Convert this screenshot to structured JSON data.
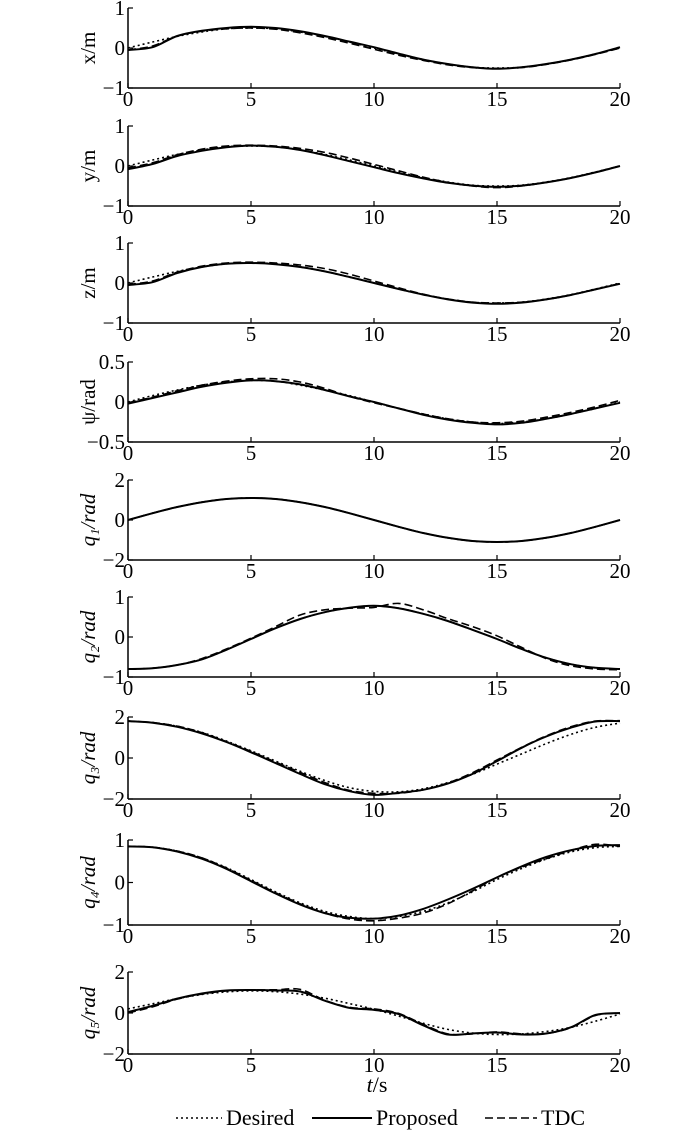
{
  "chart_data": [
    {
      "type": "line",
      "ylabel": "x/m",
      "xlim": [
        0,
        20
      ],
      "ylim": [
        -1,
        1
      ],
      "xticks": [
        "0",
        "5",
        "10",
        "15",
        "20"
      ],
      "yticks": [
        "1",
        "0",
        "−1"
      ],
      "x": [
        0,
        1,
        2,
        3,
        4,
        5,
        6,
        7,
        8,
        9,
        10,
        11,
        12,
        13,
        14,
        15,
        16,
        17,
        18,
        19,
        20
      ],
      "series": [
        {
          "name": "Desired",
          "values": [
            0.0,
            0.15,
            0.29,
            0.4,
            0.48,
            0.5,
            0.48,
            0.4,
            0.29,
            0.15,
            0.0,
            -0.15,
            -0.29,
            -0.4,
            -0.48,
            -0.5,
            -0.48,
            -0.4,
            -0.29,
            -0.15,
            0.0
          ]
        },
        {
          "name": "Proposed",
          "values": [
            -0.05,
            0.02,
            0.3,
            0.43,
            0.5,
            0.53,
            0.5,
            0.42,
            0.3,
            0.16,
            0.02,
            -0.14,
            -0.29,
            -0.4,
            -0.48,
            -0.52,
            -0.48,
            -0.4,
            -0.29,
            -0.15,
            0.02
          ]
        },
        {
          "name": "TDC",
          "values": [
            -0.05,
            0.05,
            0.3,
            0.42,
            0.48,
            0.5,
            0.47,
            0.38,
            0.26,
            0.12,
            -0.03,
            -0.18,
            -0.31,
            -0.42,
            -0.49,
            -0.51,
            -0.49,
            -0.41,
            -0.3,
            -0.16,
            0.0
          ]
        }
      ]
    },
    {
      "type": "line",
      "ylabel": "y/m",
      "xlim": [
        0,
        20
      ],
      "ylim": [
        -1,
        1
      ],
      "xticks": [
        "0",
        "5",
        "10",
        "15",
        "20"
      ],
      "yticks": [
        "1",
        "0",
        "−1"
      ],
      "x": [
        0,
        1,
        2,
        3,
        4,
        5,
        6,
        7,
        8,
        9,
        10,
        11,
        12,
        13,
        14,
        15,
        16,
        17,
        18,
        19,
        20
      ],
      "series": [
        {
          "name": "Desired",
          "values": [
            0.0,
            0.15,
            0.29,
            0.4,
            0.48,
            0.5,
            0.48,
            0.4,
            0.29,
            0.15,
            0.0,
            -0.15,
            -0.29,
            -0.4,
            -0.48,
            -0.5,
            -0.48,
            -0.4,
            -0.29,
            -0.15,
            0.0
          ]
        },
        {
          "name": "Proposed",
          "values": [
            -0.08,
            0.05,
            0.25,
            0.38,
            0.47,
            0.51,
            0.48,
            0.4,
            0.27,
            0.12,
            -0.03,
            -0.18,
            -0.31,
            -0.42,
            -0.49,
            -0.52,
            -0.49,
            -0.41,
            -0.3,
            -0.16,
            0.0
          ]
        },
        {
          "name": "TDC",
          "values": [
            -0.05,
            0.08,
            0.28,
            0.42,
            0.5,
            0.52,
            0.5,
            0.44,
            0.34,
            0.2,
            0.04,
            -0.12,
            -0.28,
            -0.41,
            -0.5,
            -0.54,
            -0.5,
            -0.41,
            -0.3,
            -0.16,
            0.0
          ]
        }
      ]
    },
    {
      "type": "line",
      "ylabel": "z/m",
      "xlim": [
        0,
        20
      ],
      "ylim": [
        -1,
        1
      ],
      "xticks": [
        "0",
        "5",
        "10",
        "15",
        "20"
      ],
      "yticks": [
        "1",
        "0",
        "−1"
      ],
      "x": [
        0,
        1,
        2,
        3,
        4,
        5,
        6,
        7,
        8,
        9,
        10,
        11,
        12,
        13,
        14,
        15,
        16,
        17,
        18,
        19,
        20
      ],
      "series": [
        {
          "name": "Desired",
          "values": [
            0.0,
            0.15,
            0.29,
            0.4,
            0.48,
            0.5,
            0.48,
            0.4,
            0.29,
            0.15,
            0.0,
            -0.15,
            -0.29,
            -0.4,
            -0.48,
            -0.5,
            -0.48,
            -0.4,
            -0.29,
            -0.15,
            0.0
          ]
        },
        {
          "name": "Proposed",
          "values": [
            -0.05,
            0.02,
            0.25,
            0.4,
            0.48,
            0.5,
            0.47,
            0.4,
            0.29,
            0.15,
            0.0,
            -0.15,
            -0.29,
            -0.41,
            -0.49,
            -0.52,
            -0.49,
            -0.41,
            -0.3,
            -0.16,
            -0.02
          ]
        },
        {
          "name": "TDC",
          "values": [
            -0.04,
            0.05,
            0.27,
            0.42,
            0.5,
            0.52,
            0.5,
            0.45,
            0.36,
            0.22,
            0.05,
            -0.12,
            -0.28,
            -0.4,
            -0.48,
            -0.5,
            -0.48,
            -0.41,
            -0.3,
            -0.16,
            -0.01
          ]
        }
      ]
    },
    {
      "type": "line",
      "ylabel": "ψ/rad",
      "xlim": [
        0,
        20
      ],
      "ylim": [
        -0.5,
        0.5
      ],
      "xticks": [
        "0",
        "5",
        "10",
        "15",
        "20"
      ],
      "yticks": [
        "0.5",
        "0",
        "−0.5"
      ],
      "x": [
        0,
        1,
        2,
        3,
        4,
        5,
        6,
        7,
        8,
        9,
        10,
        11,
        12,
        13,
        14,
        15,
        16,
        17,
        18,
        19,
        20
      ],
      "series": [
        {
          "name": "Desired",
          "values": [
            0.0,
            0.08,
            0.15,
            0.21,
            0.25,
            0.27,
            0.26,
            0.21,
            0.15,
            0.08,
            0.0,
            -0.08,
            -0.15,
            -0.21,
            -0.25,
            -0.27,
            -0.25,
            -0.21,
            -0.15,
            -0.08,
            0.0
          ]
        },
        {
          "name": "Proposed",
          "values": [
            -0.02,
            0.05,
            0.12,
            0.19,
            0.24,
            0.27,
            0.26,
            0.22,
            0.15,
            0.07,
            0.0,
            -0.08,
            -0.16,
            -0.22,
            -0.26,
            -0.28,
            -0.26,
            -0.21,
            -0.15,
            -0.08,
            -0.01
          ]
        },
        {
          "name": "TDC",
          "values": [
            -0.01,
            0.06,
            0.14,
            0.21,
            0.26,
            0.29,
            0.29,
            0.25,
            0.17,
            0.07,
            -0.01,
            -0.08,
            -0.15,
            -0.21,
            -0.25,
            -0.26,
            -0.24,
            -0.19,
            -0.13,
            -0.06,
            0.02
          ]
        }
      ]
    },
    {
      "type": "line",
      "ylabel": "q₁/rad",
      "xlim": [
        0,
        20
      ],
      "ylim": [
        -2,
        2
      ],
      "xticks": [
        "0",
        "5",
        "10",
        "15",
        "20"
      ],
      "yticks": [
        "2",
        "0",
        "−2"
      ],
      "x": [
        0,
        1,
        2,
        3,
        4,
        5,
        6,
        7,
        8,
        9,
        10,
        11,
        12,
        13,
        14,
        15,
        16,
        17,
        18,
        19,
        20
      ],
      "series": [
        {
          "name": "Desired",
          "values": [
            0.0,
            0.34,
            0.65,
            0.89,
            1.05,
            1.1,
            1.05,
            0.89,
            0.65,
            0.34,
            0.0,
            -0.34,
            -0.65,
            -0.89,
            -1.05,
            -1.1,
            -1.05,
            -0.89,
            -0.65,
            -0.34,
            0.0
          ]
        },
        {
          "name": "Proposed",
          "values": [
            0.0,
            0.34,
            0.65,
            0.89,
            1.05,
            1.1,
            1.05,
            0.89,
            0.65,
            0.34,
            0.0,
            -0.34,
            -0.65,
            -0.89,
            -1.05,
            -1.1,
            -1.05,
            -0.89,
            -0.65,
            -0.34,
            0.0
          ]
        },
        {
          "name": "TDC",
          "values": [
            0.0,
            0.34,
            0.65,
            0.89,
            1.05,
            1.1,
            1.05,
            0.89,
            0.65,
            0.34,
            0.0,
            -0.34,
            -0.65,
            -0.89,
            -1.05,
            -1.1,
            -1.05,
            -0.89,
            -0.65,
            -0.34,
            0.0
          ]
        }
      ]
    },
    {
      "type": "line",
      "ylabel": "q₂/rad",
      "xlim": [
        0,
        20
      ],
      "ylim": [
        -1,
        1
      ],
      "xticks": [
        "0",
        "5",
        "10",
        "15",
        "20"
      ],
      "yticks": [
        "1",
        "0",
        "−1"
      ],
      "x": [
        0,
        1,
        2,
        3,
        4,
        5,
        6,
        7,
        8,
        9,
        10,
        11,
        12,
        13,
        14,
        15,
        16,
        17,
        18,
        19,
        20
      ],
      "series": [
        {
          "name": "Desired",
          "values": [
            -0.8,
            -0.78,
            -0.7,
            -0.56,
            -0.32,
            -0.05,
            0.22,
            0.45,
            0.62,
            0.73,
            0.78,
            0.72,
            0.58,
            0.4,
            0.18,
            -0.05,
            -0.3,
            -0.52,
            -0.68,
            -0.77,
            -0.8
          ]
        },
        {
          "name": "Proposed",
          "values": [
            -0.8,
            -0.78,
            -0.7,
            -0.56,
            -0.32,
            -0.05,
            0.22,
            0.45,
            0.62,
            0.73,
            0.78,
            0.72,
            0.58,
            0.4,
            0.18,
            -0.05,
            -0.3,
            -0.52,
            -0.68,
            -0.77,
            -0.8
          ]
        },
        {
          "name": "TDC",
          "values": [
            -0.8,
            -0.78,
            -0.7,
            -0.54,
            -0.3,
            -0.03,
            0.26,
            0.55,
            0.68,
            0.72,
            0.74,
            0.84,
            0.68,
            0.46,
            0.26,
            0.03,
            -0.26,
            -0.54,
            -0.72,
            -0.8,
            -0.82
          ]
        }
      ]
    },
    {
      "type": "line",
      "ylabel": "q₃/rad",
      "xlim": [
        0,
        20
      ],
      "ylim": [
        -2,
        2
      ],
      "xticks": [
        "0",
        "5",
        "10",
        "15",
        "20"
      ],
      "yticks": [
        "2",
        "0",
        "−2"
      ],
      "x": [
        0,
        1,
        2,
        3,
        4,
        5,
        6,
        7,
        8,
        9,
        10,
        11,
        12,
        13,
        14,
        15,
        16,
        17,
        18,
        19,
        20
      ],
      "series": [
        {
          "name": "Desired",
          "values": [
            1.8,
            1.73,
            1.55,
            1.25,
            0.83,
            0.35,
            -0.15,
            -0.65,
            -1.1,
            -1.45,
            -1.63,
            -1.65,
            -1.5,
            -1.2,
            -0.8,
            -0.3,
            0.2,
            0.7,
            1.15,
            1.5,
            1.7
          ]
        },
        {
          "name": "Proposed",
          "values": [
            1.8,
            1.72,
            1.52,
            1.2,
            0.78,
            0.28,
            -0.25,
            -0.78,
            -1.28,
            -1.62,
            -1.8,
            -1.7,
            -1.55,
            -1.25,
            -0.78,
            -0.15,
            0.5,
            1.05,
            1.48,
            1.78,
            1.8
          ]
        },
        {
          "name": "TDC",
          "values": [
            1.8,
            1.73,
            1.55,
            1.24,
            0.8,
            0.32,
            -0.2,
            -0.7,
            -1.2,
            -1.58,
            -1.72,
            -1.72,
            -1.55,
            -1.22,
            -0.72,
            -0.1,
            0.52,
            1.08,
            1.52,
            1.8,
            1.82
          ]
        }
      ]
    },
    {
      "type": "line",
      "ylabel": "q₄/rad",
      "xlim": [
        0,
        20
      ],
      "ylim": [
        -1,
        1
      ],
      "xticks": [
        "0",
        "5",
        "10",
        "15",
        "20"
      ],
      "yticks": [
        "1",
        "0",
        "−1"
      ],
      "x": [
        0,
        1,
        2,
        3,
        4,
        5,
        6,
        7,
        8,
        9,
        10,
        11,
        12,
        13,
        14,
        15,
        16,
        17,
        18,
        19,
        20
      ],
      "series": [
        {
          "name": "Desired",
          "values": [
            0.85,
            0.83,
            0.74,
            0.58,
            0.35,
            0.07,
            -0.22,
            -0.48,
            -0.68,
            -0.8,
            -0.85,
            -0.8,
            -0.68,
            -0.48,
            -0.22,
            0.07,
            0.33,
            0.55,
            0.72,
            0.82,
            0.85
          ]
        },
        {
          "name": "Proposed",
          "values": [
            0.85,
            0.83,
            0.73,
            0.56,
            0.32,
            0.03,
            -0.26,
            -0.52,
            -0.72,
            -0.83,
            -0.85,
            -0.78,
            -0.62,
            -0.4,
            -0.15,
            0.12,
            0.38,
            0.6,
            0.76,
            0.86,
            0.88
          ]
        },
        {
          "name": "TDC",
          "values": [
            0.85,
            0.83,
            0.74,
            0.58,
            0.34,
            0.05,
            -0.24,
            -0.5,
            -0.72,
            -0.86,
            -0.9,
            -0.84,
            -0.72,
            -0.5,
            -0.2,
            0.12,
            0.36,
            0.56,
            0.75,
            0.9,
            0.85
          ]
        }
      ]
    },
    {
      "type": "line",
      "ylabel": "q₅/rad",
      "xlim": [
        0,
        20
      ],
      "ylim": [
        -2,
        2
      ],
      "xticks": [
        "0",
        "5",
        "10",
        "15",
        "20"
      ],
      "yticks": [
        "2",
        "0",
        "−2"
      ],
      "xlabel": "t/s",
      "x": [
        0,
        1,
        2,
        3,
        4,
        5,
        6,
        7,
        8,
        9,
        10,
        11,
        12,
        13,
        14,
        15,
        16,
        17,
        18,
        19,
        20
      ],
      "series": [
        {
          "name": "Desired",
          "values": [
            0.2,
            0.45,
            0.7,
            0.9,
            1.03,
            1.08,
            1.04,
            0.92,
            0.72,
            0.46,
            0.18,
            -0.15,
            -0.5,
            -0.8,
            -0.98,
            -1.05,
            -1.02,
            -0.9,
            -0.7,
            -0.4,
            -0.05
          ]
        },
        {
          "name": "Proposed",
          "values": [
            0.05,
            0.35,
            0.7,
            0.95,
            1.1,
            1.12,
            1.1,
            1.05,
            0.6,
            0.25,
            0.15,
            -0.05,
            -0.6,
            -1.05,
            -1.0,
            -0.95,
            -1.05,
            -1.0,
            -0.7,
            -0.1,
            0.0
          ]
        },
        {
          "name": "TDC",
          "values": [
            0.0,
            0.3,
            0.68,
            0.92,
            1.08,
            1.12,
            1.13,
            1.15,
            0.62,
            0.28,
            0.2,
            -0.02,
            -0.55,
            -1.02,
            -1.02,
            -0.92,
            -1.02,
            -1.0,
            -0.72,
            -0.12,
            0.0
          ]
        }
      ]
    }
  ],
  "legend": {
    "entries": [
      {
        "label": "Desired",
        "style": "dotted"
      },
      {
        "label": "Proposed",
        "style": "solid"
      },
      {
        "label": "TDC",
        "style": "dashed"
      }
    ],
    "placement": "bottom-center"
  },
  "xlabel": "t/s"
}
